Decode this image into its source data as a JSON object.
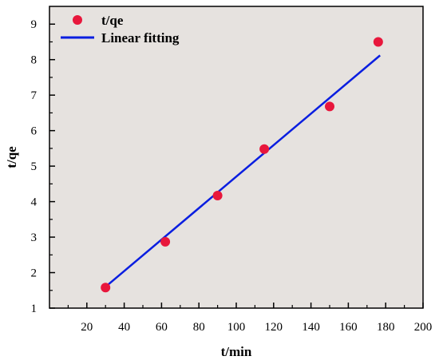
{
  "chart_data": {
    "type": "scatter",
    "xlabel": "t/min",
    "ylabel": "t/qe",
    "xlim": [
      0,
      200
    ],
    "ylim": [
      1,
      9.5
    ],
    "x_ticks": [
      20,
      40,
      60,
      80,
      100,
      120,
      140,
      160,
      180,
      200
    ],
    "y_ticks": [
      1,
      2,
      3,
      4,
      5,
      6,
      7,
      8,
      9
    ],
    "x_tick_labels": [
      "20",
      "40",
      "60",
      "80",
      "100",
      "120",
      "140",
      "160",
      "180",
      "200"
    ],
    "y_tick_labels": [
      "1",
      "2",
      "3",
      "4",
      "5",
      "6",
      "7",
      "8",
      "9"
    ],
    "grid": false,
    "legend_position": "top-left",
    "series": [
      {
        "name": "t/qe",
        "kind": "scatter",
        "color": "#e8173c",
        "x": [
          30,
          62,
          90,
          115,
          150,
          176
        ],
        "y": [
          1.58,
          2.87,
          4.17,
          5.48,
          6.68,
          8.5
        ]
      },
      {
        "name": "Linear fitting",
        "kind": "line",
        "color": "#0a1ee0",
        "x": [
          30,
          177
        ],
        "y": [
          1.6,
          8.12
        ]
      }
    ]
  },
  "colors": {
    "plot_background": "#e6e2df",
    "scatter": "#e8173c",
    "line": "#0a1ee0"
  }
}
